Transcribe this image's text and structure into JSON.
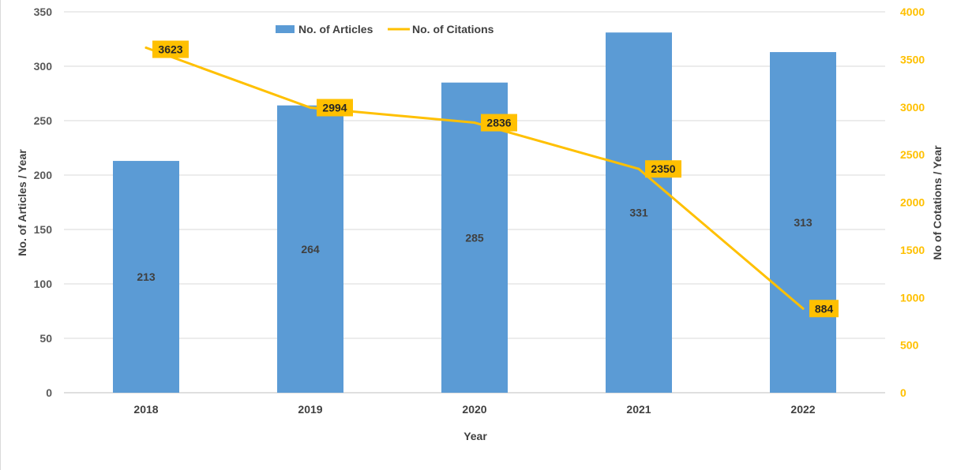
{
  "chart_data": {
    "type": "bar",
    "categories": [
      "2018",
      "2019",
      "2020",
      "2021",
      "2022"
    ],
    "series": [
      {
        "name": "No. of Articles",
        "type": "bar",
        "axis": "left",
        "color": "#5b9bd5",
        "values": [
          213,
          264,
          285,
          331,
          313
        ]
      },
      {
        "name": "No. of Citations",
        "type": "line",
        "axis": "right",
        "color": "#ffc000",
        "values": [
          3623,
          2994,
          2836,
          2350,
          884
        ]
      }
    ],
    "xlabel": "Year",
    "ylabel": "No. of Articles / Year",
    "y2label": "No of Cotations / Year",
    "ylim": [
      0,
      350
    ],
    "y2lim": [
      0,
      4000
    ],
    "yticks": [
      "0",
      "50",
      "100",
      "150",
      "200",
      "250",
      "300",
      "350"
    ],
    "y2ticks": [
      "0",
      "500",
      "1000",
      "1500",
      "2000",
      "2500",
      "3000",
      "3500",
      "4000"
    ],
    "grid": true,
    "legend": "top"
  }
}
